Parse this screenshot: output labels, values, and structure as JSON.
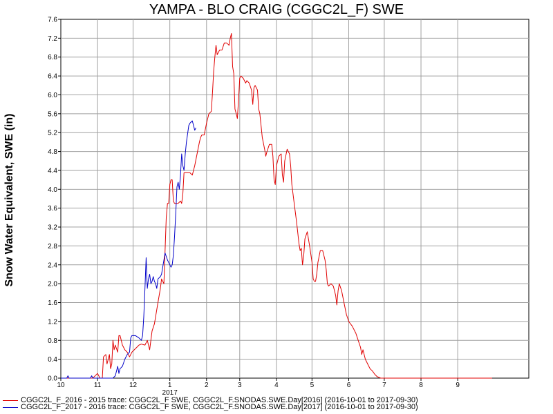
{
  "chart_data": {
    "type": "line",
    "title": "YAMPA - BLO CRAIG (CGGC2L_F) SWE",
    "ylabel": "Snow Water Equivalent, SWE (in)",
    "xlabel": "",
    "ylim": [
      0,
      7.6
    ],
    "xlim": [
      "2016-10-01",
      "2017-10-31"
    ],
    "grid": true,
    "legend_position": "bottom-left",
    "y_ticks": [
      "0.0",
      "0.4",
      "0.8",
      "1.2",
      "1.6",
      "2.0",
      "2.4",
      "2.8",
      "3.2",
      "3.6",
      "4.0",
      "4.4",
      "4.8",
      "5.2",
      "5.6",
      "6.0",
      "6.4",
      "6.8",
      "7.2",
      "7.6"
    ],
    "x_ticks": [
      {
        "date": "2016-10-01",
        "label": "10"
      },
      {
        "date": "2016-11-01",
        "label": "11"
      },
      {
        "date": "2016-12-01",
        "label": "12"
      },
      {
        "date": "2017-01-01",
        "label": "1"
      },
      {
        "date": "2017-02-01",
        "label": "2"
      },
      {
        "date": "2017-03-01",
        "label": "3"
      },
      {
        "date": "2017-04-01",
        "label": "4"
      },
      {
        "date": "2017-05-01",
        "label": "5"
      },
      {
        "date": "2017-06-01",
        "label": "6"
      },
      {
        "date": "2017-07-01",
        "label": "7"
      },
      {
        "date": "2017-08-01",
        "label": "8"
      },
      {
        "date": "2017-09-01",
        "label": "9"
      }
    ],
    "x_year_label": {
      "date": "2017-01-01",
      "label": "2017"
    },
    "series": [
      {
        "name": "CGGC2L_F_2016 - 2015 trace: CGGC2L_F SWE, CGGC2L_F.SNODAS.SWE.Day[2016] (2016-10-01 to 2017-09-30)",
        "color": "#e00000",
        "points": [
          [
            "2016-10-01",
            0.0
          ],
          [
            "2016-10-28",
            0.0
          ],
          [
            "2016-11-01",
            0.1
          ],
          [
            "2016-11-03",
            0.0
          ],
          [
            "2016-11-05",
            0.0
          ],
          [
            "2016-11-06",
            0.45
          ],
          [
            "2016-11-08",
            0.5
          ],
          [
            "2016-11-09",
            0.3
          ],
          [
            "2016-11-11",
            0.5
          ],
          [
            "2016-11-12",
            0.2
          ],
          [
            "2016-11-13",
            0.3
          ],
          [
            "2016-11-14",
            0.8
          ],
          [
            "2016-11-15",
            0.6
          ],
          [
            "2016-11-16",
            0.7
          ],
          [
            "2016-11-18",
            0.55
          ],
          [
            "2016-11-19",
            0.9
          ],
          [
            "2016-11-20",
            0.9
          ],
          [
            "2016-11-22",
            0.7
          ],
          [
            "2016-11-24",
            0.6
          ],
          [
            "2016-11-26",
            0.55
          ],
          [
            "2016-11-28",
            0.45
          ],
          [
            "2016-11-30",
            0.55
          ],
          [
            "2016-12-02",
            0.6
          ],
          [
            "2016-12-04",
            0.65
          ],
          [
            "2016-12-06",
            0.7
          ],
          [
            "2016-12-08",
            0.72
          ],
          [
            "2016-12-11",
            0.7
          ],
          [
            "2016-12-13",
            0.8
          ],
          [
            "2016-12-15",
            0.6
          ],
          [
            "2016-12-17",
            1.0
          ],
          [
            "2016-12-19",
            1.15
          ],
          [
            "2016-12-20",
            1.3
          ],
          [
            "2016-12-22",
            1.6
          ],
          [
            "2016-12-24",
            1.9
          ],
          [
            "2016-12-25",
            2.1
          ],
          [
            "2016-12-27",
            2.0
          ],
          [
            "2016-12-28",
            2.7
          ],
          [
            "2016-12-29",
            3.4
          ],
          [
            "2016-12-30",
            3.7
          ],
          [
            "2016-12-31",
            3.7
          ],
          [
            "2017-01-01",
            4.1
          ],
          [
            "2017-01-02",
            4.2
          ],
          [
            "2017-01-03",
            4.2
          ],
          [
            "2017-01-04",
            3.75
          ],
          [
            "2017-01-05",
            3.7
          ],
          [
            "2017-01-08",
            3.7
          ],
          [
            "2017-01-10",
            3.75
          ],
          [
            "2017-01-11",
            3.7
          ],
          [
            "2017-01-12",
            3.9
          ],
          [
            "2017-01-13",
            4.35
          ],
          [
            "2017-01-16",
            4.35
          ],
          [
            "2017-01-18",
            4.35
          ],
          [
            "2017-01-20",
            4.3
          ],
          [
            "2017-01-22",
            4.5
          ],
          [
            "2017-01-24",
            4.75
          ],
          [
            "2017-01-26",
            5.0
          ],
          [
            "2017-01-27",
            5.1
          ],
          [
            "2017-01-28",
            5.15
          ],
          [
            "2017-01-30",
            5.15
          ],
          [
            "2017-02-01",
            5.4
          ],
          [
            "2017-02-03",
            5.6
          ],
          [
            "2017-02-05",
            5.65
          ],
          [
            "2017-02-06",
            6.05
          ],
          [
            "2017-02-07",
            6.5
          ],
          [
            "2017-02-08",
            6.8
          ],
          [
            "2017-02-09",
            7.05
          ],
          [
            "2017-02-10",
            6.85
          ],
          [
            "2017-02-12",
            6.95
          ],
          [
            "2017-02-14",
            6.95
          ],
          [
            "2017-02-16",
            7.1
          ],
          [
            "2017-02-18",
            7.1
          ],
          [
            "2017-02-20",
            7.05
          ],
          [
            "2017-02-21",
            7.2
          ],
          [
            "2017-02-22",
            7.3
          ],
          [
            "2017-02-23",
            6.6
          ],
          [
            "2017-02-24",
            6.45
          ],
          [
            "2017-02-25",
            5.7
          ],
          [
            "2017-02-26",
            5.6
          ],
          [
            "2017-02-27",
            5.5
          ],
          [
            "2017-02-28",
            5.9
          ],
          [
            "2017-03-01",
            6.35
          ],
          [
            "2017-03-02",
            6.4
          ],
          [
            "2017-03-04",
            6.35
          ],
          [
            "2017-03-06",
            6.25
          ],
          [
            "2017-03-07",
            6.3
          ],
          [
            "2017-03-09",
            6.25
          ],
          [
            "2017-03-11",
            6.1
          ],
          [
            "2017-03-12",
            5.8
          ],
          [
            "2017-03-13",
            6.15
          ],
          [
            "2017-03-14",
            6.2
          ],
          [
            "2017-03-16",
            6.1
          ],
          [
            "2017-03-17",
            5.7
          ],
          [
            "2017-03-18",
            5.6
          ],
          [
            "2017-03-20",
            5.1
          ],
          [
            "2017-03-22",
            4.85
          ],
          [
            "2017-03-23",
            4.7
          ],
          [
            "2017-03-24",
            4.8
          ],
          [
            "2017-03-26",
            4.95
          ],
          [
            "2017-03-28",
            4.95
          ],
          [
            "2017-03-29",
            4.7
          ],
          [
            "2017-03-30",
            4.2
          ],
          [
            "2017-03-31",
            4.1
          ],
          [
            "2017-04-01",
            4.5
          ],
          [
            "2017-04-03",
            4.7
          ],
          [
            "2017-04-05",
            4.75
          ],
          [
            "2017-04-06",
            4.3
          ],
          [
            "2017-04-07",
            4.15
          ],
          [
            "2017-04-08",
            4.6
          ],
          [
            "2017-04-10",
            4.85
          ],
          [
            "2017-04-12",
            4.75
          ],
          [
            "2017-04-13",
            4.5
          ],
          [
            "2017-04-14",
            4.1
          ],
          [
            "2017-04-16",
            3.7
          ],
          [
            "2017-04-18",
            3.3
          ],
          [
            "2017-04-20",
            2.85
          ],
          [
            "2017-04-21",
            2.7
          ],
          [
            "2017-04-22",
            2.75
          ],
          [
            "2017-04-23",
            2.4
          ],
          [
            "2017-04-24",
            2.6
          ],
          [
            "2017-04-25",
            2.95
          ],
          [
            "2017-04-27",
            3.1
          ],
          [
            "2017-04-29",
            2.8
          ],
          [
            "2017-05-01",
            2.45
          ],
          [
            "2017-05-02",
            2.1
          ],
          [
            "2017-05-03",
            2.05
          ],
          [
            "2017-05-04",
            2.05
          ],
          [
            "2017-05-05",
            2.2
          ],
          [
            "2017-05-06",
            2.45
          ],
          [
            "2017-05-08",
            2.7
          ],
          [
            "2017-05-10",
            2.7
          ],
          [
            "2017-05-12",
            2.5
          ],
          [
            "2017-05-13",
            2.3
          ],
          [
            "2017-05-14",
            2.0
          ],
          [
            "2017-05-15",
            1.95
          ],
          [
            "2017-05-17",
            2.0
          ],
          [
            "2017-05-19",
            1.95
          ],
          [
            "2017-05-21",
            1.75
          ],
          [
            "2017-05-22",
            1.55
          ],
          [
            "2017-05-23",
            1.85
          ],
          [
            "2017-05-24",
            2.0
          ],
          [
            "2017-05-26",
            1.85
          ],
          [
            "2017-05-28",
            1.6
          ],
          [
            "2017-05-30",
            1.35
          ],
          [
            "2017-06-01",
            1.2
          ],
          [
            "2017-06-04",
            1.1
          ],
          [
            "2017-06-07",
            0.95
          ],
          [
            "2017-06-09",
            0.8
          ],
          [
            "2017-06-11",
            0.65
          ],
          [
            "2017-06-12",
            0.5
          ],
          [
            "2017-06-13",
            0.6
          ],
          [
            "2017-06-15",
            0.4
          ],
          [
            "2017-06-17",
            0.3
          ],
          [
            "2017-06-19",
            0.2
          ],
          [
            "2017-06-21",
            0.15
          ],
          [
            "2017-06-23",
            0.08
          ],
          [
            "2017-06-25",
            0.03
          ],
          [
            "2017-06-28",
            0.0
          ],
          [
            "2017-09-30",
            0.0
          ]
        ]
      },
      {
        "name": "CGGC2L_F_2017 - 2016 trace: CGGC2L_F SWE, CGGC2L_F.SNODAS.SWE.Day[2017] (2016-10-01 to 2017-09-30)",
        "color": "#0000c8",
        "points": [
          [
            "2016-10-01",
            0.0
          ],
          [
            "2016-10-06",
            0.0
          ],
          [
            "2016-10-07",
            0.05
          ],
          [
            "2016-10-08",
            0.0
          ],
          [
            "2016-10-26",
            0.0
          ],
          [
            "2016-10-27",
            0.05
          ],
          [
            "2016-10-28",
            0.0
          ],
          [
            "2016-11-14",
            0.0
          ],
          [
            "2016-11-16",
            0.05
          ],
          [
            "2016-11-18",
            0.25
          ],
          [
            "2016-11-19",
            0.1
          ],
          [
            "2016-11-20",
            0.2
          ],
          [
            "2016-11-22",
            0.25
          ],
          [
            "2016-11-24",
            0.4
          ],
          [
            "2016-11-26",
            0.5
          ],
          [
            "2016-11-28",
            0.55
          ],
          [
            "2016-11-29",
            0.85
          ],
          [
            "2016-11-30",
            0.9
          ],
          [
            "2016-12-03",
            0.9
          ],
          [
            "2016-12-06",
            0.85
          ],
          [
            "2016-12-08",
            0.8
          ],
          [
            "2016-12-09",
            0.9
          ],
          [
            "2016-12-10",
            1.3
          ],
          [
            "2016-12-11",
            1.9
          ],
          [
            "2016-12-12",
            2.55
          ],
          [
            "2016-12-13",
            1.9
          ],
          [
            "2016-12-14",
            2.1
          ],
          [
            "2016-12-15",
            2.2
          ],
          [
            "2016-12-16",
            2.0
          ],
          [
            "2016-12-17",
            2.05
          ],
          [
            "2016-12-18",
            2.15
          ],
          [
            "2016-12-19",
            2.05
          ],
          [
            "2016-12-20",
            2.0
          ],
          [
            "2016-12-21",
            1.9
          ],
          [
            "2016-12-22",
            2.1
          ],
          [
            "2016-12-24",
            2.15
          ],
          [
            "2016-12-25",
            2.2
          ],
          [
            "2016-12-27",
            2.5
          ],
          [
            "2016-12-28",
            2.65
          ],
          [
            "2016-12-30",
            2.5
          ],
          [
            "2017-01-01",
            2.4
          ],
          [
            "2017-01-02",
            2.35
          ],
          [
            "2017-01-03",
            2.4
          ],
          [
            "2017-01-04",
            2.6
          ],
          [
            "2017-01-05",
            3.0
          ],
          [
            "2017-01-06",
            3.5
          ],
          [
            "2017-01-07",
            4.05
          ],
          [
            "2017-01-08",
            4.15
          ],
          [
            "2017-01-09",
            4.0
          ],
          [
            "2017-01-10",
            4.3
          ],
          [
            "2017-01-11",
            4.75
          ],
          [
            "2017-01-12",
            4.5
          ],
          [
            "2017-01-13",
            4.4
          ],
          [
            "2017-01-14",
            4.75
          ],
          [
            "2017-01-15",
            5.0
          ],
          [
            "2017-01-17",
            5.35
          ],
          [
            "2017-01-18",
            5.4
          ],
          [
            "2017-01-20",
            5.45
          ],
          [
            "2017-01-21",
            5.35
          ],
          [
            "2017-01-22",
            5.25
          ],
          [
            "2017-01-23",
            5.3
          ]
        ]
      }
    ]
  }
}
